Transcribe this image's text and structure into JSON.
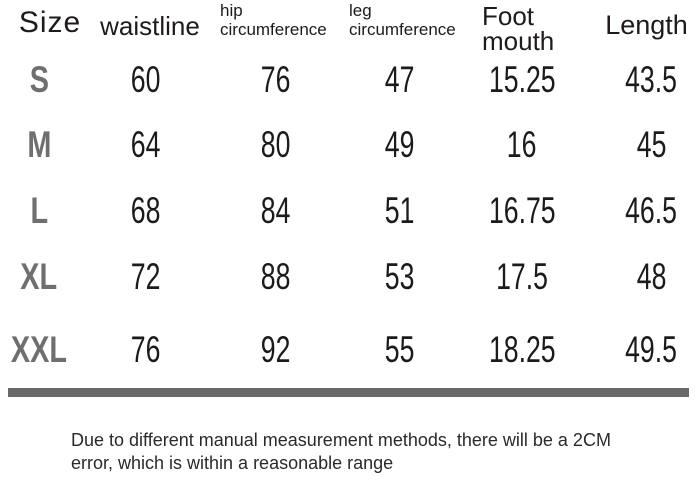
{
  "chart_data": {
    "type": "table",
    "title": "",
    "columns": [
      "Size",
      "waistline",
      "hip circumference",
      "leg circumference",
      "Foot mouth",
      "Length"
    ],
    "rows": [
      [
        "S",
        60,
        76,
        47,
        15.25,
        43.5
      ],
      [
        "M",
        64,
        80,
        49,
        16,
        45
      ],
      [
        "L",
        68,
        84,
        51,
        16.75,
        46.5
      ],
      [
        "XL",
        72,
        88,
        53,
        17.5,
        48
      ],
      [
        "XXL",
        76,
        92,
        55,
        18.25,
        49.5
      ]
    ],
    "note": "Due to different manual measurement methods, there will be a 2CM error, which is within a reasonable range"
  },
  "display": {
    "headers": {
      "size": "Size",
      "waistline": "waistline",
      "hip": "hip\ncircumference",
      "leg": "leg\ncircumference",
      "foot": "Foot\nmouth",
      "length": "Length"
    },
    "note": "Due to different manual measurement methods, there will be a 2CM\nerror, which is within a reasonable range"
  },
  "colors": {
    "text": "#1b1b1b",
    "header_text": "#1e1a1e",
    "size_letter": "#6f6f6f",
    "divider": "#696969",
    "background": "#ffffff"
  }
}
